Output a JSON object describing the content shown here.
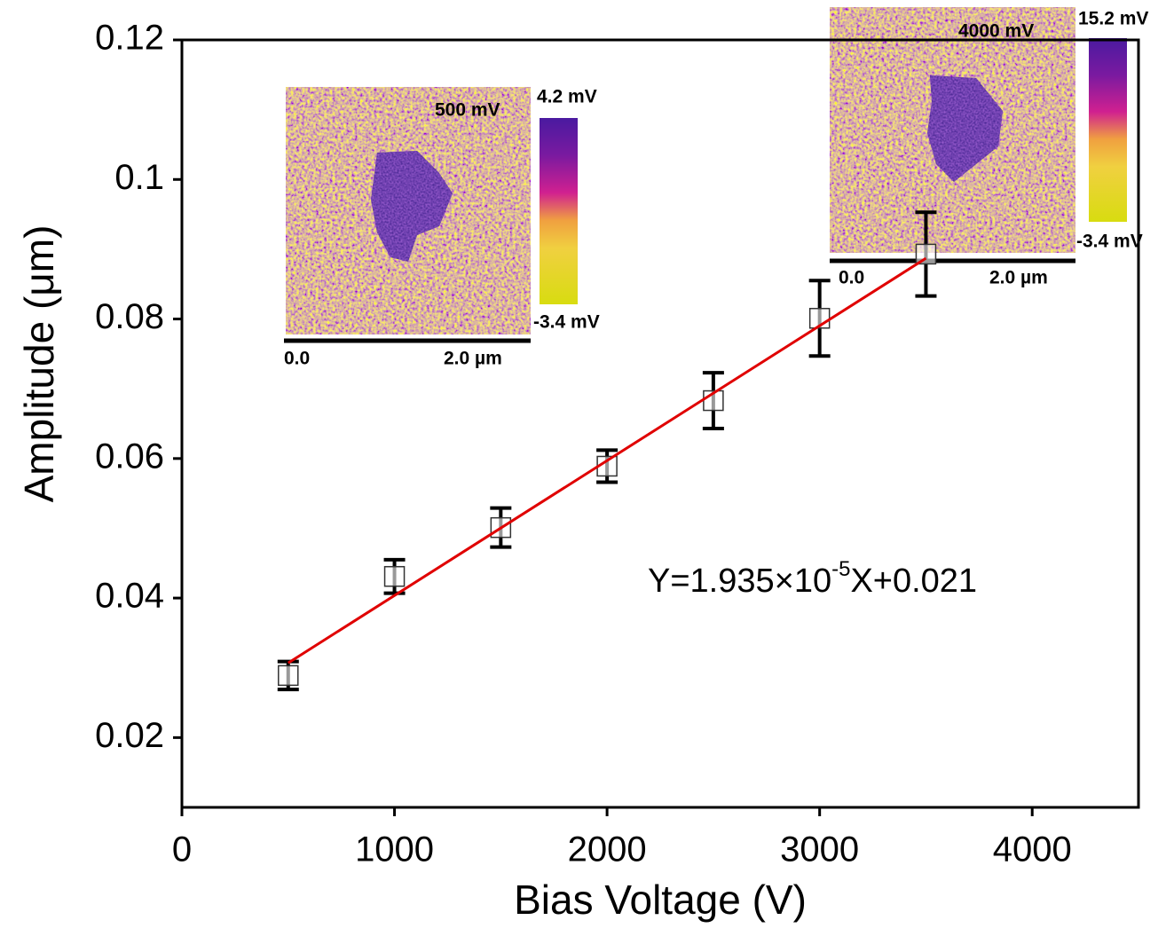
{
  "chart_data": {
    "type": "scatter",
    "x_label": "Bias Voltage (V)",
    "y_label": "Amplitude (μm)",
    "xlim": [
      0,
      4500
    ],
    "ylim": [
      0.01,
      0.12
    ],
    "xticks": [
      0,
      1000,
      2000,
      3000,
      4000
    ],
    "yticks": [
      0.02,
      0.04,
      0.06,
      0.08,
      0.1,
      0.12
    ],
    "grid": false,
    "series": [
      {
        "marker": "square",
        "color": "#000000",
        "x": [
          500,
          1000,
          1500,
          2000,
          2500,
          3000,
          3500
        ],
        "values": [
          0.0289,
          0.0431,
          0.0501,
          0.0589,
          0.0683,
          0.0801,
          0.0893
        ],
        "errors": [
          0.002,
          0.0024,
          0.0028,
          0.0023,
          0.004,
          0.0054,
          0.006
        ]
      },
      {
        "marker": "line",
        "color": "#e00000",
        "x": [
          500,
          3500
        ],
        "values": [
          0.0307,
          0.0887
        ]
      }
    ],
    "annotation": {
      "text": "Y=1.935×10",
      "superscript": "-5",
      "tail": "X+0.021"
    },
    "insets": [
      {
        "title": "500 mV",
        "colorbar_max": "4.2 mV",
        "colorbar_min": "-3.4 mV",
        "scale_start": "0.0",
        "scale_end": "2.0 µm"
      },
      {
        "title": "4000 mV",
        "colorbar_max": "15.2 mV",
        "colorbar_min": "-3.4 mV",
        "scale_start": "0.0",
        "scale_end": "2.0 µm"
      }
    ]
  }
}
